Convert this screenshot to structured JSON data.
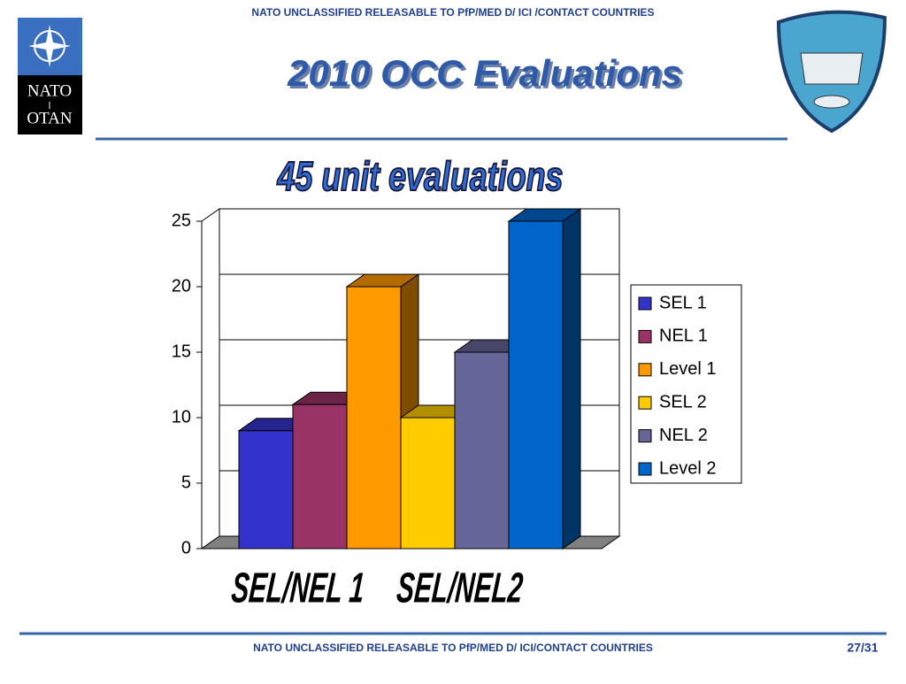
{
  "header": "NATO UNCLASSIFIED RELEASABLE TO PfP/MED D/ ICI /CONTACT COUNTRIES",
  "title": "2010 OCC Evaluations",
  "logo": {
    "top": "NATO",
    "bottom": "OTAN"
  },
  "footer": "NATO UNCLASSIFIED RELEASABLE TO PfP/MED D/ ICI/CONTACT COUNTRIES",
  "page": "27/31",
  "chart_data": {
    "type": "bar",
    "title": "45 unit evaluations",
    "categories": [
      "SEL/NEL 1",
      "SEL/NEL2"
    ],
    "series": [
      {
        "name": "SEL 1",
        "color": "#3333cc",
        "values": [
          9,
          null
        ]
      },
      {
        "name": "NEL 1",
        "color": "#993366",
        "values": [
          11,
          null
        ]
      },
      {
        "name": "Level 1",
        "color": "#ff9900",
        "values": [
          20,
          null
        ]
      },
      {
        "name": "SEL 2",
        "color": "#ffcc00",
        "values": [
          null,
          10
        ]
      },
      {
        "name": "NEL 2",
        "color": "#666699",
        "values": [
          null,
          15
        ]
      },
      {
        "name": "Level 2",
        "color": "#0066cc",
        "values": [
          null,
          25
        ]
      }
    ],
    "ylim": [
      0,
      25
    ],
    "yticks": [
      0,
      5,
      10,
      15,
      20,
      25
    ],
    "grid": true,
    "legend": "right"
  }
}
